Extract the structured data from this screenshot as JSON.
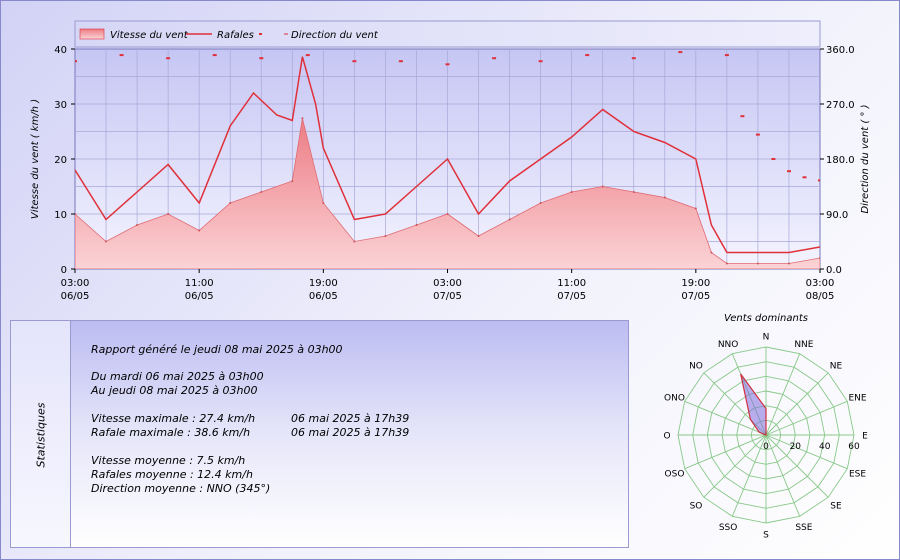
{
  "chart_data": [
    {
      "type": "line",
      "legend": {
        "placement": "top-left",
        "entries": [
          "Vitesse du vent",
          "Rafales",
          "Direction du vent"
        ]
      },
      "ylabel": "Vitesse du vent  ( km/h )",
      "y2label": "Direction du vent  ( ° )",
      "ylim": [
        0,
        40
      ],
      "y2lim": [
        0,
        360
      ],
      "yticks": [
        "0",
        "10",
        "20",
        "30",
        "40"
      ],
      "y2ticks": [
        "0.0",
        "90.0",
        "180.0",
        "270.0",
        "360.0"
      ],
      "xlim": [
        "2025-05-06 03:00",
        "2025-05-08 03:00"
      ],
      "xticks": [
        {
          "time": "03:00",
          "date": "06/05"
        },
        {
          "time": "11:00",
          "date": "06/05"
        },
        {
          "time": "19:00",
          "date": "06/05"
        },
        {
          "time": "03:00",
          "date": "07/05"
        },
        {
          "time": "11:00",
          "date": "07/05"
        },
        {
          "time": "19:00",
          "date": "07/05"
        },
        {
          "time": "03:00",
          "date": "08/05"
        }
      ],
      "grid": true,
      "series": [
        {
          "name": "Vitesse du vent",
          "style": "area",
          "color": "#f08f96",
          "times": [
            "2025-05-06 03:00",
            "2025-05-06 05:00",
            "2025-05-06 07:00",
            "2025-05-06 09:00",
            "2025-05-06 11:00",
            "2025-05-06 13:00",
            "2025-05-06 15:00",
            "2025-05-06 17:00",
            "2025-05-06 17:39",
            "2025-05-06 19:00",
            "2025-05-06 21:00",
            "2025-05-06 23:00",
            "2025-05-07 01:00",
            "2025-05-07 03:00",
            "2025-05-07 05:00",
            "2025-05-07 07:00",
            "2025-05-07 09:00",
            "2025-05-07 11:00",
            "2025-05-07 13:00",
            "2025-05-07 15:00",
            "2025-05-07 17:00",
            "2025-05-07 19:00",
            "2025-05-07 20:00",
            "2025-05-07 21:00",
            "2025-05-07 23:00",
            "2025-05-08 01:00",
            "2025-05-08 03:00"
          ],
          "values": [
            10,
            5,
            8,
            10,
            7,
            12,
            14,
            16,
            27.4,
            12,
            5,
            6,
            8,
            10,
            6,
            9,
            12,
            14,
            15,
            14,
            13,
            11,
            3,
            1,
            1,
            1,
            2
          ]
        },
        {
          "name": "Rafales",
          "style": "line",
          "color": "#e0303a",
          "times": [
            "2025-05-06 03:00",
            "2025-05-06 05:00",
            "2025-05-06 07:00",
            "2025-05-06 09:00",
            "2025-05-06 11:00",
            "2025-05-06 13:00",
            "2025-05-06 14:30",
            "2025-05-06 16:00",
            "2025-05-06 17:00",
            "2025-05-06 17:39",
            "2025-05-06 18:30",
            "2025-05-06 19:00",
            "2025-05-06 21:00",
            "2025-05-06 23:00",
            "2025-05-07 01:00",
            "2025-05-07 03:00",
            "2025-05-07 05:00",
            "2025-05-07 07:00",
            "2025-05-07 09:00",
            "2025-05-07 11:00",
            "2025-05-07 13:00",
            "2025-05-07 15:00",
            "2025-05-07 17:00",
            "2025-05-07 19:00",
            "2025-05-07 20:00",
            "2025-05-07 21:00",
            "2025-05-07 23:00",
            "2025-05-08 01:00",
            "2025-05-08 03:00"
          ],
          "values": [
            18,
            9,
            14,
            19,
            12,
            26,
            32,
            28,
            27,
            38.6,
            30,
            22,
            9,
            10,
            15,
            20,
            10,
            16,
            20,
            24,
            29,
            25,
            23,
            20,
            8,
            3,
            3,
            3,
            4
          ]
        },
        {
          "name": "Direction du vent",
          "style": "points",
          "axis": "y2",
          "color": "#e0303a",
          "times": [
            "2025-05-06 03:00",
            "2025-05-06 06:00",
            "2025-05-06 09:00",
            "2025-05-06 12:00",
            "2025-05-06 15:00",
            "2025-05-06 18:00",
            "2025-05-06 21:00",
            "2025-05-07 00:00",
            "2025-05-07 03:00",
            "2025-05-07 06:00",
            "2025-05-07 09:00",
            "2025-05-07 12:00",
            "2025-05-07 15:00",
            "2025-05-07 18:00",
            "2025-05-07 21:00",
            "2025-05-07 22:00",
            "2025-05-07 23:00",
            "2025-05-08 00:00",
            "2025-05-08 01:00",
            "2025-05-08 02:00",
            "2025-05-08 03:00"
          ],
          "values": [
            340,
            350,
            345,
            350,
            345,
            350,
            340,
            340,
            335,
            345,
            340,
            350,
            345,
            355,
            350,
            250,
            220,
            180,
            160,
            150,
            145
          ]
        }
      ]
    },
    {
      "type": "radar",
      "title": "Vents dominants",
      "directions": [
        "N",
        "NNE",
        "NE",
        "ENE",
        "E",
        "ESE",
        "SE",
        "SSE",
        "S",
        "SSO",
        "SO",
        "OSO",
        "O",
        "ONO",
        "NO",
        "NNO"
      ],
      "rlim": [
        0,
        60
      ],
      "rticks": [
        "0",
        "20",
        "40",
        "60"
      ],
      "values": [
        18,
        0,
        0,
        0,
        0,
        0,
        0,
        0,
        0,
        0,
        0,
        0,
        0,
        5,
        15,
        45
      ]
    }
  ],
  "stats": {
    "side_label": "Statistiques",
    "generated": "Rapport généré le jeudi 08 mai 2025 à 03h00",
    "from": "Du mardi 06 mai 2025 à 03h00",
    "to": "Au jeudi 08 mai 2025 à 03h00",
    "max_speed": "Vitesse maximale : 27.4 km/h",
    "max_speed_date": "06 mai 2025 à 17h39",
    "max_gust": "Rafale maximale : 38.6 km/h",
    "max_gust_date": "06 mai 2025 à 17h39",
    "avg_speed": "Vitesse moyenne : 7.5 km/h",
    "avg_gust": "Rafales moyenne : 12.4 km/h",
    "avg_dir": "Direction moyenne : NNO (345°)"
  }
}
